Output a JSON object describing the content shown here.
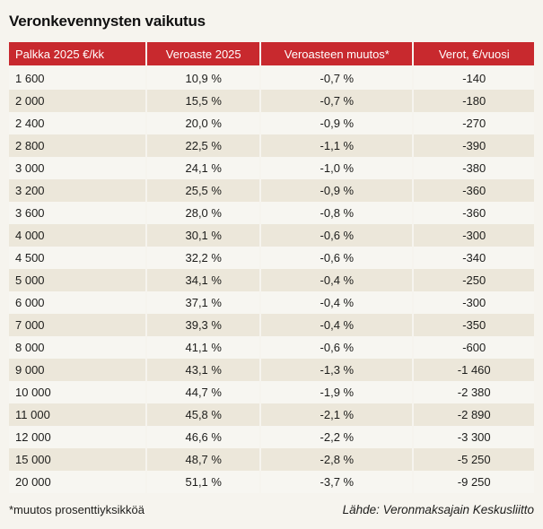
{
  "title": "Veronkevennysten vaikutus",
  "table": {
    "columns": [
      "Palkka 2025 €/kk",
      "Veroaste 2025",
      "Veroasteen muutos*",
      "Verot, €/vuosi"
    ],
    "rows": [
      [
        "1 600",
        "10,9 %",
        "-0,7 %",
        "-140"
      ],
      [
        "2 000",
        "15,5 %",
        "-0,7 %",
        "-180"
      ],
      [
        "2 400",
        "20,0 %",
        "-0,9 %",
        "-270"
      ],
      [
        "2 800",
        "22,5 %",
        "-1,1 %",
        "-390"
      ],
      [
        "3 000",
        "24,1 %",
        "-1,0 %",
        "-380"
      ],
      [
        "3 200",
        "25,5 %",
        "-0,9 %",
        "-360"
      ],
      [
        "3 600",
        "28,0 %",
        "-0,8 %",
        "-360"
      ],
      [
        "4 000",
        "30,1 %",
        "-0,6 %",
        "-300"
      ],
      [
        "4 500",
        "32,2 %",
        "-0,6 %",
        "-340"
      ],
      [
        "5 000",
        "34,1 %",
        "-0,4 %",
        "-250"
      ],
      [
        "6 000",
        "37,1 %",
        "-0,4 %",
        "-300"
      ],
      [
        "7 000",
        "39,3 %",
        "-0,4 %",
        "-350"
      ],
      [
        "8 000",
        "41,1 %",
        "-0,6 %",
        "-600"
      ],
      [
        "9 000",
        "43,1 %",
        "-1,3 %",
        "-1 460"
      ],
      [
        "10 000",
        "44,7 %",
        "-1,9 %",
        "-2 380"
      ],
      [
        "11 000",
        "45,8 %",
        "-2,1 %",
        "-2 890"
      ],
      [
        "12 000",
        "46,6 %",
        "-2,2 %",
        "-3 300"
      ],
      [
        "15 000",
        "48,7 %",
        "-2,8 %",
        "-5 250"
      ],
      [
        "20 000",
        "51,1 %",
        "-3,7 %",
        "-9 250"
      ]
    ]
  },
  "footnote": "*muutos prosenttiyksikköä",
  "source": "Lähde: Veronmaksajain Keskusliitto",
  "colors": {
    "header_bg": "#c8292e",
    "header_text": "#ffffff",
    "row_base": "#f7f6f1",
    "row_alt": "#ece7da",
    "page_bg": "#f6f4ee",
    "text": "#1d1d1b"
  },
  "chart_data": {
    "type": "table",
    "title": "Veronkevennysten vaikutus",
    "columns": [
      "Palkka 2025 €/kk",
      "Veroaste 2025",
      "Veroasteen muutos*",
      "Verot, €/vuosi"
    ],
    "salary_eur_per_month": [
      1600,
      2000,
      2400,
      2800,
      3000,
      3200,
      3600,
      4000,
      4500,
      5000,
      6000,
      7000,
      8000,
      9000,
      10000,
      11000,
      12000,
      15000,
      20000
    ],
    "tax_rate_2025_pct": [
      10.9,
      15.5,
      20.0,
      22.5,
      24.1,
      25.5,
      28.0,
      30.1,
      32.2,
      34.1,
      37.1,
      39.3,
      41.1,
      43.1,
      44.7,
      45.8,
      46.6,
      48.7,
      51.1
    ],
    "tax_rate_change_pp": [
      -0.7,
      -0.7,
      -0.9,
      -1.1,
      -1.0,
      -0.9,
      -0.8,
      -0.6,
      -0.6,
      -0.4,
      -0.4,
      -0.4,
      -0.6,
      -1.3,
      -1.9,
      -2.1,
      -2.2,
      -2.8,
      -3.7
    ],
    "taxes_eur_per_year": [
      -140,
      -180,
      -270,
      -390,
      -380,
      -360,
      -360,
      -300,
      -340,
      -250,
      -300,
      -350,
      -600,
      -1460,
      -2380,
      -2890,
      -3300,
      -5250,
      -9250
    ],
    "footnote": "*muutos prosenttiyksikköä",
    "source": "Lähde: Veronmaksajain Keskusliitto"
  }
}
